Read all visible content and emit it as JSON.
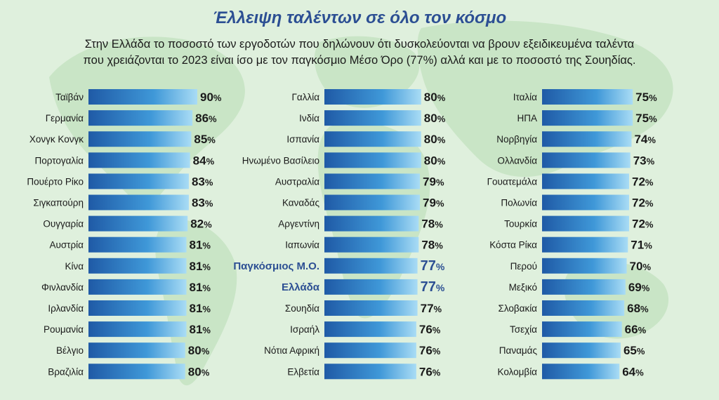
{
  "title": "Έλλειψη ταλέντων σε όλο τον κόσμο",
  "subtitle_line1": "Στην Ελλάδα το ποσοστό των εργοδοτών που δηλώνουν ότι δυσκολεύονται να βρουν εξειδικευμένα ταλέντα",
  "subtitle_line2": "που χρειάζονται το 2023 είναι ίσο με τον παγκόσμιο Μέσο Όρο (77%) αλλά και με το ποσοστό της Σουηδίας.",
  "colors": {
    "bar_start": "#1f5aa6",
    "bar_mid": "#3f98d8",
    "bar_end": "#a9dcf5",
    "highlight": "#2c4f93",
    "map": "#c9e5c6"
  },
  "chart_data": {
    "type": "bar",
    "orientation": "horizontal",
    "title": "Έλλειψη ταλέντων σε όλο τον κόσμο",
    "value_suffix": "%",
    "columns": [
      {
        "categories": [
          "Ταϊβάν",
          "Γερμανία",
          "Χονγκ Κονγκ",
          "Πορτογαλία",
          "Πουέρτο Ρίκο",
          "Σιγκαπούρη",
          "Ουγγαρία",
          "Αυστρία",
          "Κίνα",
          "Φινλανδία",
          "Ιρλανδία",
          "Ρουμανία",
          "Βέλγιο",
          "Βραζιλία"
        ],
        "values": [
          90,
          86,
          85,
          84,
          83,
          83,
          82,
          81,
          81,
          81,
          81,
          81,
          80,
          80
        ],
        "highlight": []
      },
      {
        "categories": [
          "Γαλλία",
          "Ινδία",
          "Ισπανία",
          "Ηνωμένο Βασίλειο",
          "Αυστραλία",
          "Καναδάς",
          "Αργεντίνη",
          "Ιαπωνία",
          "Παγκόσμιος Μ.Ο.",
          "Ελλάδα",
          "Σουηδία",
          "Ισραήλ",
          "Νότια Αφρική",
          "Ελβετία"
        ],
        "values": [
          80,
          80,
          80,
          80,
          79,
          79,
          78,
          78,
          77,
          77,
          77,
          76,
          76,
          76
        ],
        "highlight": [
          8,
          9
        ]
      },
      {
        "categories": [
          "Ιταλία",
          "ΗΠΑ",
          "Νορβηγία",
          "Ολλανδία",
          "Γουατεμάλα",
          "Πολωνία",
          "Τουρκία",
          "Κόστα Ρίκα",
          "Περού",
          "Μεξικό",
          "Σλοβακία",
          "Τσεχία",
          "Παναμάς",
          "Κολομβία"
        ],
        "values": [
          75,
          75,
          74,
          73,
          72,
          72,
          72,
          71,
          70,
          69,
          68,
          66,
          65,
          64
        ],
        "highlight": []
      }
    ]
  }
}
